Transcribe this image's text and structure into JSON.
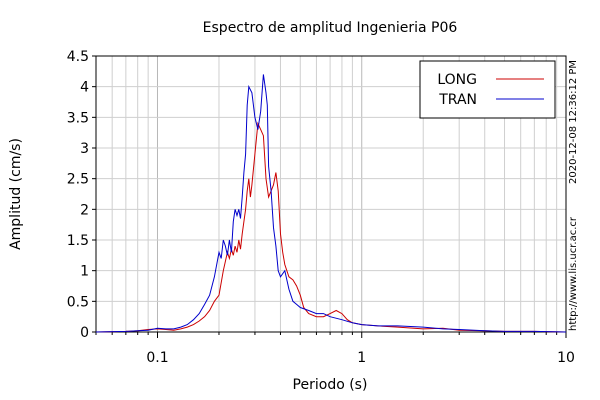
{
  "chart_data": {
    "type": "line",
    "title": "Espectro de amplitud Ingenieria P06",
    "xlabel": "Periodo (s)",
    "ylabel": "Amplitud (cm/s)",
    "x_scale": "log",
    "xlim": [
      0.05,
      10
    ],
    "ylim": [
      0,
      4.5
    ],
    "x_ticks": [
      {
        "value": 0.1,
        "label": "0.1"
      },
      {
        "value": 1,
        "label": "1"
      },
      {
        "value": 10,
        "label": "10"
      }
    ],
    "y_ticks": [
      {
        "value": 0,
        "label": "0"
      },
      {
        "value": 0.5,
        "label": "0.5"
      },
      {
        "value": 1,
        "label": "1"
      },
      {
        "value": 1.5,
        "label": "1.5"
      },
      {
        "value": 2,
        "label": "2"
      },
      {
        "value": 2.5,
        "label": "2.5"
      },
      {
        "value": 3,
        "label": "3"
      },
      {
        "value": 3.5,
        "label": "3.5"
      },
      {
        "value": 4,
        "label": "4"
      },
      {
        "value": 4.5,
        "label": "4.5"
      }
    ],
    "grid": true,
    "legend_position": "top-right",
    "series": [
      {
        "name": "LONG",
        "color": "#cc0000",
        "x": [
          0.05,
          0.07,
          0.08,
          0.09,
          0.1,
          0.11,
          0.12,
          0.13,
          0.14,
          0.15,
          0.16,
          0.17,
          0.18,
          0.19,
          0.2,
          0.21,
          0.22,
          0.225,
          0.23,
          0.235,
          0.24,
          0.245,
          0.25,
          0.255,
          0.26,
          0.265,
          0.27,
          0.275,
          0.28,
          0.285,
          0.29,
          0.3,
          0.31,
          0.32,
          0.33,
          0.34,
          0.35,
          0.36,
          0.37,
          0.38,
          0.39,
          0.4,
          0.41,
          0.42,
          0.44,
          0.46,
          0.48,
          0.5,
          0.52,
          0.55,
          0.6,
          0.65,
          0.7,
          0.75,
          0.8,
          0.85,
          0.9,
          1.0,
          1.2,
          1.5,
          2.0,
          2.5,
          3.0,
          4.0,
          5.0,
          7.0,
          10.0
        ],
        "values": [
          0,
          0.01,
          0.02,
          0.04,
          0.05,
          0.04,
          0.03,
          0.05,
          0.08,
          0.12,
          0.18,
          0.25,
          0.35,
          0.5,
          0.6,
          1.0,
          1.3,
          1.2,
          1.35,
          1.25,
          1.4,
          1.3,
          1.5,
          1.35,
          1.6,
          1.8,
          2.0,
          2.3,
          2.5,
          2.2,
          2.4,
          2.9,
          3.4,
          3.3,
          3.2,
          2.5,
          2.2,
          2.3,
          2.4,
          2.6,
          2.3,
          1.6,
          1.3,
          1.1,
          0.9,
          0.85,
          0.75,
          0.6,
          0.4,
          0.3,
          0.25,
          0.25,
          0.3,
          0.35,
          0.3,
          0.2,
          0.15,
          0.12,
          0.1,
          0.08,
          0.05,
          0.06,
          0.03,
          0.02,
          0.01,
          0.01,
          0.0
        ]
      },
      {
        "name": "TRAN",
        "color": "#0000cc",
        "x": [
          0.05,
          0.07,
          0.08,
          0.09,
          0.1,
          0.11,
          0.12,
          0.13,
          0.14,
          0.15,
          0.16,
          0.17,
          0.18,
          0.19,
          0.2,
          0.205,
          0.21,
          0.215,
          0.22,
          0.225,
          0.23,
          0.235,
          0.24,
          0.245,
          0.25,
          0.255,
          0.26,
          0.265,
          0.27,
          0.275,
          0.28,
          0.29,
          0.3,
          0.31,
          0.32,
          0.33,
          0.34,
          0.345,
          0.35,
          0.36,
          0.37,
          0.38,
          0.39,
          0.4,
          0.42,
          0.44,
          0.46,
          0.48,
          0.5,
          0.55,
          0.6,
          0.65,
          0.7,
          0.8,
          0.9,
          1.0,
          1.2,
          1.5,
          2.0,
          2.5,
          3.0,
          4.0,
          5.0,
          7.0,
          10.0
        ],
        "values": [
          0,
          0.01,
          0.02,
          0.03,
          0.06,
          0.05,
          0.05,
          0.08,
          0.12,
          0.2,
          0.3,
          0.45,
          0.6,
          0.9,
          1.3,
          1.2,
          1.5,
          1.4,
          1.25,
          1.5,
          1.3,
          1.8,
          2.0,
          1.9,
          2.0,
          1.85,
          2.2,
          2.6,
          2.9,
          3.7,
          4.0,
          3.9,
          3.5,
          3.3,
          3.6,
          4.2,
          3.9,
          3.7,
          2.7,
          2.3,
          1.7,
          1.4,
          1.0,
          0.9,
          1.0,
          0.7,
          0.5,
          0.45,
          0.4,
          0.35,
          0.3,
          0.3,
          0.25,
          0.2,
          0.15,
          0.12,
          0.1,
          0.1,
          0.08,
          0.05,
          0.04,
          0.02,
          0.01,
          0.01,
          0.0
        ]
      }
    ]
  },
  "side_labels": {
    "timestamp": "2020-12-08 12:36:12 PM",
    "url": "http://www.lis.ucr.ac.cr"
  }
}
